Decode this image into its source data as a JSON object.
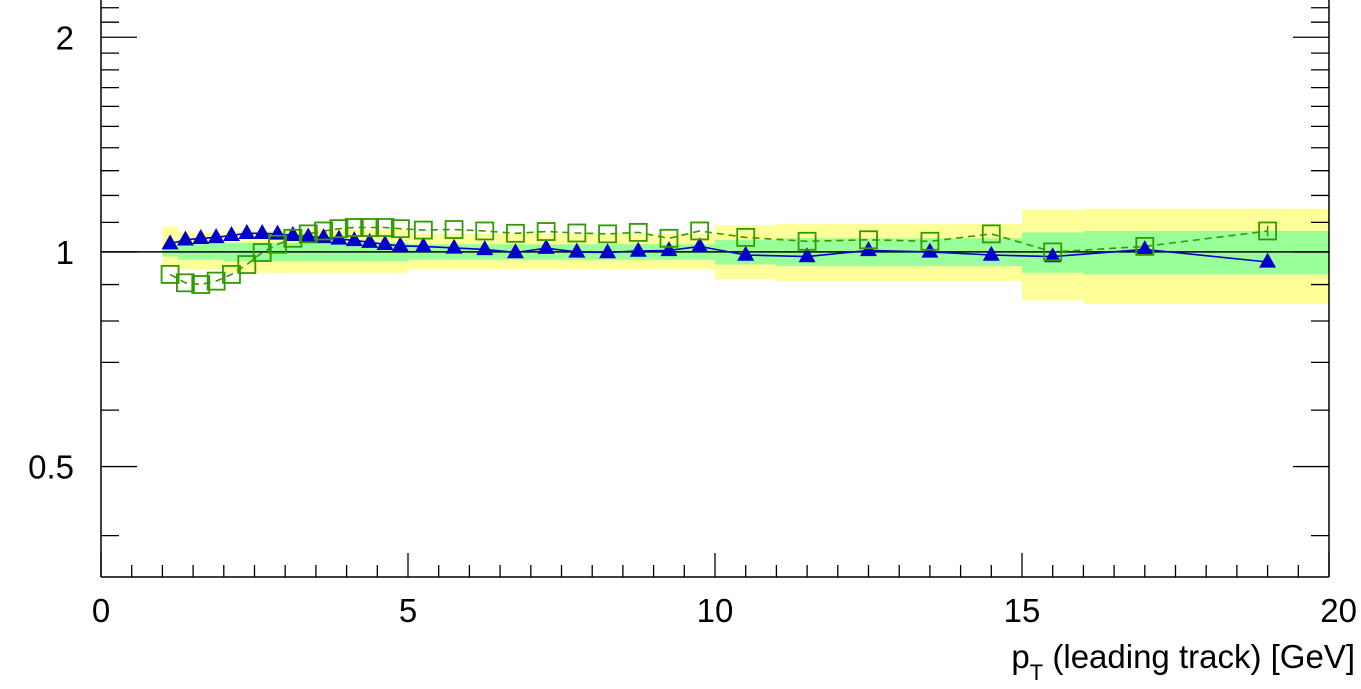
{
  "chart_data": {
    "type": "scatter",
    "xlabel": "p",
    "xlabel_sub": "T",
    "xlabel_rest": " (leading track) [GeV]",
    "ylabel": "",
    "xlim": [
      0,
      20
    ],
    "ylim": [
      0.35,
      2.3
    ],
    "y_scale": "log",
    "x_tick_labels": [
      {
        "value": 0,
        "label": "0"
      },
      {
        "value": 5,
        "label": "5"
      },
      {
        "value": 10,
        "label": "10"
      },
      {
        "value": 15,
        "label": "15"
      },
      {
        "value": 20,
        "label": "20"
      }
    ],
    "y_tick_labels": [
      {
        "value": 0.5,
        "label": "0.5"
      },
      {
        "value": 1,
        "label": "1"
      },
      {
        "value": 2,
        "label": "2"
      }
    ],
    "reference_line": 1,
    "colors": {
      "band_outer": "#ffff99",
      "band_inner": "#99ff99",
      "series_triangle": "#0000cc",
      "series_square": "#339900"
    },
    "bands": [
      {
        "x0": 1.0,
        "x1": 1.25,
        "inner": [
          0.985,
          1.015
        ],
        "outer": [
          0.955,
          1.085
        ]
      },
      {
        "x0": 1.25,
        "x1": 2.0,
        "inner": [
          0.975,
          1.03
        ],
        "outer": [
          0.945,
          1.065
        ]
      },
      {
        "x0": 2.0,
        "x1": 3.0,
        "inner": [
          0.97,
          1.03
        ],
        "outer": [
          0.935,
          1.07
        ]
      },
      {
        "x0": 3.0,
        "x1": 5.0,
        "inner": [
          0.97,
          1.03
        ],
        "outer": [
          0.935,
          1.075
        ]
      },
      {
        "x0": 5.0,
        "x1": 10.0,
        "inner": [
          0.975,
          1.025
        ],
        "outer": [
          0.945,
          1.06
        ]
      },
      {
        "x0": 10.0,
        "x1": 11.0,
        "inner": [
          0.96,
          1.04
        ],
        "outer": [
          0.915,
          1.09
        ]
      },
      {
        "x0": 11.0,
        "x1": 15.0,
        "inner": [
          0.955,
          1.045
        ],
        "outer": [
          0.91,
          1.095
        ]
      },
      {
        "x0": 15.0,
        "x1": 16.0,
        "inner": [
          0.935,
          1.065
        ],
        "outer": [
          0.855,
          1.145
        ]
      },
      {
        "x0": 16.0,
        "x1": 20.0,
        "inner": [
          0.93,
          1.07
        ],
        "outer": [
          0.845,
          1.15
        ]
      }
    ],
    "series": [
      {
        "marker": "triangle",
        "line": "solid",
        "x": [
          1.125,
          1.375,
          1.625,
          1.875,
          2.125,
          2.375,
          2.625,
          2.875,
          3.125,
          3.375,
          3.625,
          3.875,
          4.125,
          4.375,
          4.625,
          4.875,
          5.25,
          5.75,
          6.25,
          6.75,
          7.25,
          7.75,
          8.25,
          8.75,
          9.25,
          9.75,
          10.5,
          11.5,
          12.5,
          13.5,
          14.5,
          15.5,
          17.0,
          19.0
        ],
        "y": [
          1.027,
          1.04,
          1.045,
          1.048,
          1.055,
          1.062,
          1.062,
          1.06,
          1.055,
          1.05,
          1.048,
          1.043,
          1.038,
          1.032,
          1.025,
          1.02,
          1.018,
          1.013,
          1.008,
          0.998,
          1.012,
          1.0,
          0.998,
          1.003,
          1.005,
          1.018,
          0.99,
          0.985,
          1.005,
          1.0,
          0.99,
          0.985,
          1.008,
          0.968
        ]
      },
      {
        "marker": "open-square",
        "line": "dashed",
        "x": [
          1.125,
          1.375,
          1.625,
          1.875,
          2.125,
          2.375,
          2.625,
          2.875,
          3.125,
          3.375,
          3.625,
          3.875,
          4.125,
          4.375,
          4.625,
          4.875,
          5.25,
          5.75,
          6.25,
          6.75,
          7.25,
          7.75,
          8.25,
          8.75,
          9.25,
          9.75,
          10.5,
          11.5,
          12.5,
          13.5,
          14.5,
          15.5,
          17.0,
          19.0
        ],
        "y": [
          0.93,
          0.905,
          0.9,
          0.91,
          0.93,
          0.96,
          0.998,
          1.025,
          1.045,
          1.06,
          1.07,
          1.078,
          1.082,
          1.082,
          1.082,
          1.078,
          1.073,
          1.075,
          1.07,
          1.062,
          1.068,
          1.063,
          1.06,
          1.065,
          1.045,
          1.07,
          1.048,
          1.035,
          1.04,
          1.035,
          1.06,
          1.0,
          1.018,
          1.07
        ],
        "y_err": [
          0,
          0,
          0,
          0,
          0,
          0,
          0,
          0,
          0,
          0,
          0,
          0,
          0,
          0,
          0,
          0,
          0,
          0,
          0,
          0,
          0,
          0,
          0,
          0,
          0,
          0,
          0,
          0,
          0,
          0,
          0,
          0,
          0,
          0.018
        ]
      }
    ]
  }
}
